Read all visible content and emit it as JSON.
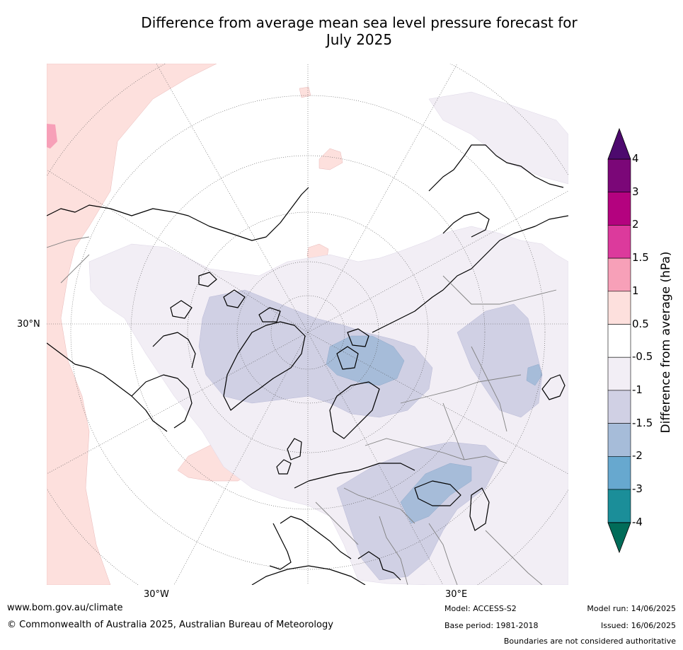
{
  "title_line1": "Difference from average mean sea level pressure forecast for",
  "title_line2": "July 2025",
  "map": {
    "projection": "north-polar-stereographic",
    "region": "Northern Hemisphere (Europe, North Atlantic, Arctic, North Africa)",
    "lon_labels": [
      "30°W",
      "30°E"
    ],
    "lat_labels": [
      "30°N"
    ],
    "gridlines": true
  },
  "colorbar": {
    "label": "Difference from average (hPa)",
    "ticks": [
      "4",
      "3",
      "2",
      "1.5",
      "1",
      "0.5",
      "-0.5",
      "-1",
      "-1.5",
      "-2",
      "-3",
      "-4"
    ],
    "bins": [
      {
        "range": "3 to 4",
        "color": "#7b0778"
      },
      {
        "range": "2 to 3",
        "color": "#b4027f"
      },
      {
        "range": "1.5 to 2",
        "color": "#dc3a9c"
      },
      {
        "range": "1 to 1.5",
        "color": "#f7a0b8"
      },
      {
        "range": "0.5 to 1",
        "color": "#fde0dd"
      },
      {
        "range": "-0.5 to 0.5",
        "color": "#ffffff"
      },
      {
        "range": "-1 to -0.5",
        "color": "#f2eef5"
      },
      {
        "range": "-1.5 to -1",
        "color": "#d0d0e4"
      },
      {
        "range": "-2 to -1.5",
        "color": "#a6bcd9"
      },
      {
        "range": "-3 to -2",
        "color": "#67a8cf"
      },
      {
        "range": "-4 to -3",
        "color": "#1b8e99"
      }
    ],
    "over_color": "#4d0a6e",
    "under_color": "#016c59"
  },
  "footer": {
    "url": "www.bom.gov.au/climate",
    "copyright": "© Commonwealth of Australia 2025, Australian Bureau of Meteorology",
    "model": "Model: ACCESS-S2",
    "base_period": "Base period: 1981-2018",
    "model_run": "Model run: 14/06/2025",
    "issued": "Issued: 16/06/2025",
    "disclaimer": "Boundaries are not considered authoritative"
  }
}
